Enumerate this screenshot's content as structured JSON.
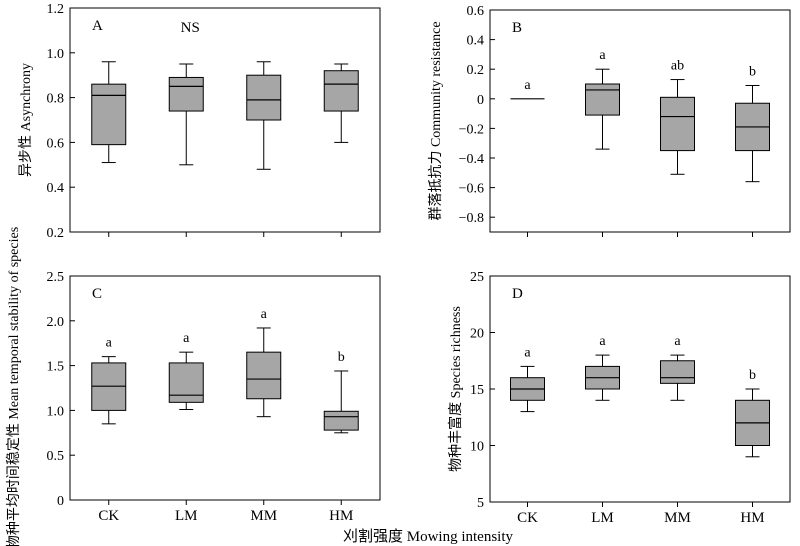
{
  "figure": {
    "shared_xlabel": "刈割强度 Mowing intensity"
  },
  "chart_data": [
    {
      "type": "box",
      "panel_label": "A",
      "annotation": "NS",
      "ylabel": "异步性 Asynchrony",
      "ylim": [
        0.2,
        1.2
      ],
      "yticks": [
        0.2,
        0.4,
        0.6,
        0.8,
        1.0,
        1.2
      ],
      "ytick_labels": [
        "0.2",
        "0.4",
        "0.6",
        "0.8",
        "1.0",
        "1.2"
      ],
      "categories": [
        "CK",
        "LM",
        "MM",
        "HM"
      ],
      "boxes": [
        {
          "min": 0.51,
          "q1": 0.59,
          "median": 0.81,
          "q3": 0.86,
          "max": 0.96,
          "letter": ""
        },
        {
          "min": 0.5,
          "q1": 0.74,
          "median": 0.85,
          "q3": 0.89,
          "max": 0.95,
          "letter": ""
        },
        {
          "min": 0.48,
          "q1": 0.7,
          "median": 0.79,
          "q3": 0.9,
          "max": 0.96,
          "letter": ""
        },
        {
          "min": 0.6,
          "q1": 0.74,
          "median": 0.86,
          "q3": 0.92,
          "max": 0.95,
          "letter": ""
        }
      ]
    },
    {
      "type": "box",
      "panel_label": "B",
      "annotation": "",
      "ylabel": "群落抵抗力 Community resistance",
      "ylim": [
        -0.9,
        0.6
      ],
      "yticks": [
        -0.8,
        -0.6,
        -0.4,
        -0.2,
        0,
        0.2,
        0.4,
        0.6
      ],
      "ytick_labels": [
        "−0.8",
        "−0.6",
        "−0.4",
        "−0.2",
        "0",
        "0.2",
        "0.4",
        "0.6"
      ],
      "categories": [
        "CK",
        "LM",
        "MM",
        "HM"
      ],
      "boxes": [
        {
          "min": 0.0,
          "q1": 0.0,
          "median": 0.0,
          "q3": 0.0,
          "max": 0.0,
          "letter": "a"
        },
        {
          "min": -0.34,
          "q1": -0.11,
          "median": 0.06,
          "q3": 0.1,
          "max": 0.2,
          "letter": "a"
        },
        {
          "min": -0.51,
          "q1": -0.35,
          "median": -0.12,
          "q3": 0.01,
          "max": 0.13,
          "letter": "ab"
        },
        {
          "min": -0.56,
          "q1": -0.35,
          "median": -0.19,
          "q3": -0.03,
          "max": 0.09,
          "letter": "b"
        }
      ]
    },
    {
      "type": "box",
      "panel_label": "C",
      "annotation": "",
      "ylabel": "物种平均时间稳定性 Mean temporal stability of species",
      "ylim": [
        0,
        2.5
      ],
      "yticks": [
        0,
        0.5,
        1.0,
        1.5,
        2.0,
        2.5
      ],
      "ytick_labels": [
        "0",
        "0.5",
        "1.0",
        "1.5",
        "2.0",
        "2.5"
      ],
      "categories": [
        "CK",
        "LM",
        "MM",
        "HM"
      ],
      "boxes": [
        {
          "min": 0.85,
          "q1": 1.0,
          "median": 1.27,
          "q3": 1.53,
          "max": 1.6,
          "letter": "a"
        },
        {
          "min": 1.01,
          "q1": 1.09,
          "median": 1.17,
          "q3": 1.53,
          "max": 1.65,
          "letter": "a"
        },
        {
          "min": 0.93,
          "q1": 1.13,
          "median": 1.35,
          "q3": 1.65,
          "max": 1.92,
          "letter": "a"
        },
        {
          "min": 0.75,
          "q1": 0.78,
          "median": 0.93,
          "q3": 0.99,
          "max": 1.44,
          "letter": "b"
        }
      ]
    },
    {
      "type": "box",
      "panel_label": "D",
      "annotation": "",
      "ylabel": "物种丰富度 Species richness",
      "ylim": [
        5,
        25
      ],
      "yticks": [
        5,
        10,
        15,
        20,
        25
      ],
      "ytick_labels": [
        "5",
        "10",
        "15",
        "20",
        "25"
      ],
      "categories": [
        "CK",
        "LM",
        "MM",
        "HM"
      ],
      "boxes": [
        {
          "min": 13,
          "q1": 14,
          "median": 15,
          "q3": 16,
          "max": 17,
          "letter": "a"
        },
        {
          "min": 14,
          "q1": 15,
          "median": 16,
          "q3": 17,
          "max": 18,
          "letter": "a"
        },
        {
          "min": 14,
          "q1": 15.5,
          "median": 16,
          "q3": 17.5,
          "max": 18,
          "letter": "a"
        },
        {
          "min": 9,
          "q1": 10,
          "median": 12,
          "q3": 14,
          "max": 15,
          "letter": "b"
        }
      ]
    }
  ]
}
